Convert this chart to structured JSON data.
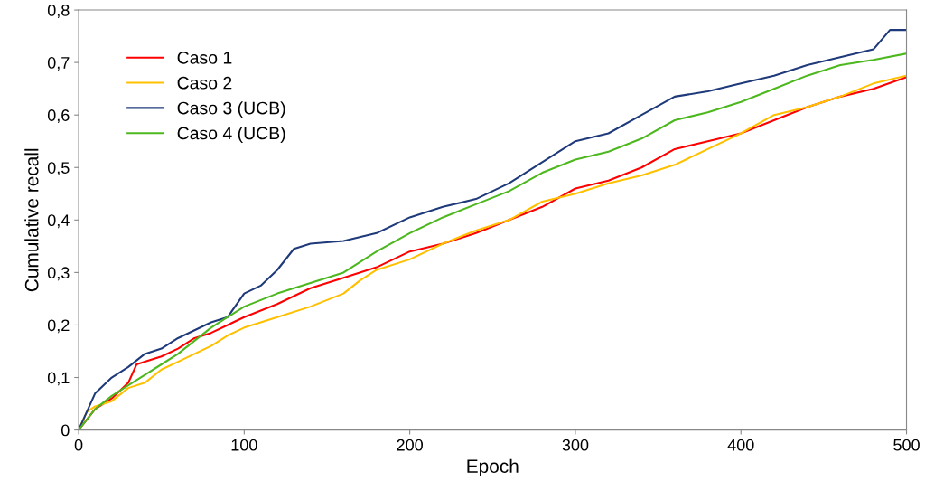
{
  "chart_data": {
    "type": "line",
    "xlabel": "Epoch",
    "ylabel": "Cumulative recall",
    "xlim": [
      0,
      500
    ],
    "xticks": [
      0,
      100,
      200,
      300,
      400,
      500
    ],
    "ylim": [
      0,
      0.8
    ],
    "yticks": [
      0,
      {
        "value": 0.1,
        "label": "0,1"
      },
      {
        "value": 0.2,
        "label": "0,2"
      },
      {
        "value": 0.3,
        "label": "0,3"
      },
      {
        "value": 0.4,
        "label": "0,4"
      },
      {
        "value": 0.5,
        "label": "0,5"
      },
      {
        "value": 0.6,
        "label": "0,6"
      },
      {
        "value": 0.7,
        "label": "0,7"
      },
      {
        "value": 0.8,
        "label": "0,8"
      }
    ],
    "grid": false,
    "legend": "top left",
    "marker": "none",
    "line_style": "solid",
    "series": [
      {
        "name": "Caso 1",
        "color": "#ff0000",
        "x": [
          0,
          10,
          20,
          30,
          35,
          40,
          50,
          60,
          70,
          80,
          90,
          100,
          120,
          140,
          160,
          180,
          200,
          220,
          240,
          260,
          280,
          300,
          320,
          340,
          360,
          380,
          400,
          420,
          440,
          460,
          480,
          500
        ],
        "values": [
          0,
          0.04,
          0.06,
          0.09,
          0.125,
          0.13,
          0.14,
          0.155,
          0.175,
          0.185,
          0.2,
          0.215,
          0.24,
          0.27,
          0.29,
          0.31,
          0.34,
          0.355,
          0.375,
          0.4,
          0.425,
          0.46,
          0.475,
          0.5,
          0.535,
          0.55,
          0.565,
          0.59,
          0.615,
          0.635,
          0.65,
          0.672
        ]
      },
      {
        "name": "Caso 2",
        "color": "#ffc000",
        "x": [
          0,
          5,
          10,
          20,
          30,
          40,
          50,
          60,
          70,
          80,
          90,
          100,
          120,
          140,
          160,
          170,
          180,
          200,
          220,
          240,
          260,
          280,
          300,
          320,
          340,
          360,
          380,
          400,
          420,
          440,
          460,
          480,
          500
        ],
        "values": [
          0,
          0.035,
          0.045,
          0.055,
          0.08,
          0.09,
          0.115,
          0.13,
          0.145,
          0.16,
          0.18,
          0.195,
          0.215,
          0.235,
          0.26,
          0.285,
          0.305,
          0.325,
          0.355,
          0.38,
          0.4,
          0.435,
          0.45,
          0.47,
          0.485,
          0.505,
          0.535,
          0.565,
          0.6,
          0.615,
          0.635,
          0.66,
          0.675
        ]
      },
      {
        "name": "Caso 3 (UCB)",
        "color": "#1f3a7a",
        "x": [
          0,
          10,
          20,
          30,
          40,
          50,
          60,
          70,
          80,
          90,
          100,
          110,
          120,
          130,
          140,
          160,
          180,
          200,
          220,
          240,
          260,
          280,
          300,
          320,
          340,
          360,
          380,
          400,
          420,
          440,
          460,
          480,
          490,
          500
        ],
        "values": [
          0,
          0.07,
          0.1,
          0.12,
          0.145,
          0.155,
          0.175,
          0.19,
          0.205,
          0.215,
          0.26,
          0.275,
          0.305,
          0.345,
          0.355,
          0.36,
          0.375,
          0.405,
          0.425,
          0.44,
          0.47,
          0.51,
          0.55,
          0.565,
          0.6,
          0.635,
          0.645,
          0.66,
          0.675,
          0.695,
          0.71,
          0.725,
          0.762,
          0.762
        ]
      },
      {
        "name": "Caso 4 (UCB)",
        "color": "#4cb81e",
        "x": [
          0,
          10,
          20,
          30,
          40,
          50,
          60,
          70,
          80,
          90,
          100,
          120,
          140,
          160,
          180,
          200,
          220,
          240,
          260,
          280,
          300,
          320,
          340,
          360,
          380,
          400,
          420,
          440,
          460,
          480,
          500
        ],
        "values": [
          0,
          0.04,
          0.065,
          0.085,
          0.105,
          0.125,
          0.145,
          0.17,
          0.195,
          0.215,
          0.235,
          0.26,
          0.28,
          0.3,
          0.34,
          0.375,
          0.405,
          0.43,
          0.455,
          0.49,
          0.515,
          0.53,
          0.555,
          0.59,
          0.605,
          0.625,
          0.65,
          0.675,
          0.695,
          0.705,
          0.717
        ]
      }
    ]
  }
}
